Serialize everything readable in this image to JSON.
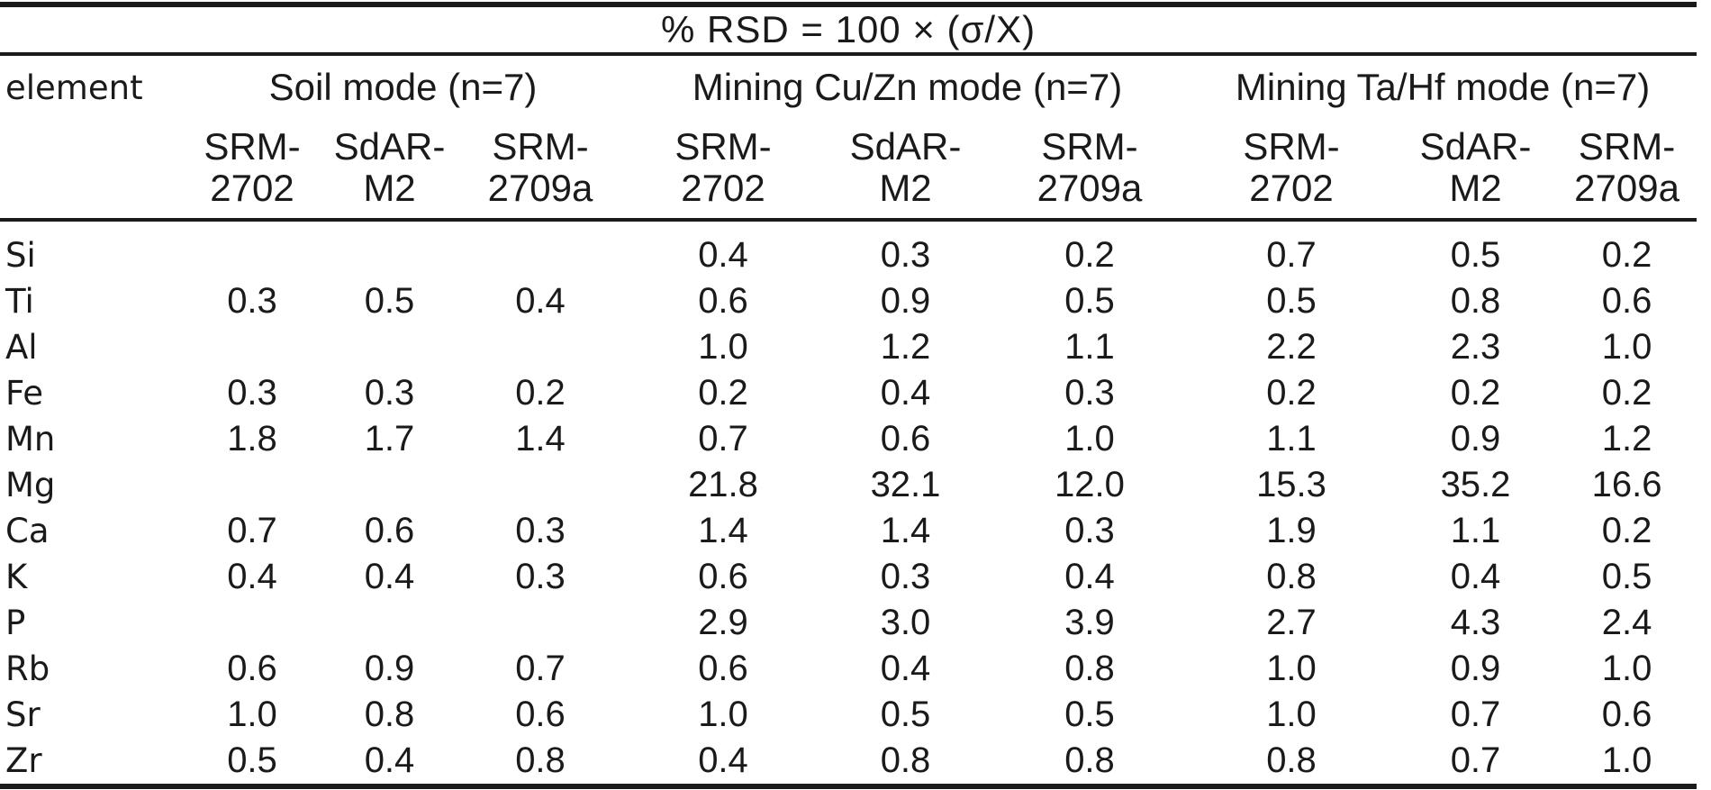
{
  "table": {
    "title": "% RSD = 100 × (σ/X)",
    "stub_header": "element",
    "groups": [
      {
        "label": "Soil mode (n=7)",
        "columns": [
          "SRM-\n2702",
          "SdAR-\nM2",
          "SRM-\n2709a"
        ]
      },
      {
        "label": "Mining Cu/Zn mode (n=7)",
        "columns": [
          "SRM-\n2702",
          "SdAR-\nM2",
          "SRM-\n2709a"
        ]
      },
      {
        "label": "Mining Ta/Hf mode (n=7)",
        "columns": [
          "SRM-\n2702",
          "SdAR-\nM2",
          "SRM-\n2709a"
        ]
      }
    ],
    "rows": [
      {
        "element": "Si",
        "values": [
          "",
          "",
          "",
          "0.4",
          "0.3",
          "0.2",
          "0.7",
          "0.5",
          "0.2"
        ]
      },
      {
        "element": "Ti",
        "values": [
          "0.3",
          "0.5",
          "0.4",
          "0.6",
          "0.9",
          "0.5",
          "0.5",
          "0.8",
          "0.6"
        ]
      },
      {
        "element": "Al",
        "values": [
          "",
          "",
          "",
          "1.0",
          "1.2",
          "1.1",
          "2.2",
          "2.3",
          "1.0"
        ]
      },
      {
        "element": "Fe",
        "values": [
          "0.3",
          "0.3",
          "0.2",
          "0.2",
          "0.4",
          "0.3",
          "0.2",
          "0.2",
          "0.2"
        ]
      },
      {
        "element": "Mn",
        "values": [
          "1.8",
          "1.7",
          "1.4",
          "0.7",
          "0.6",
          "1.0",
          "1.1",
          "0.9",
          "1.2"
        ]
      },
      {
        "element": "Mg",
        "values": [
          "",
          "",
          "",
          "21.8",
          "32.1",
          "12.0",
          "15.3",
          "35.2",
          "16.6"
        ]
      },
      {
        "element": "Ca",
        "values": [
          "0.7",
          "0.6",
          "0.3",
          "1.4",
          "1.4",
          "0.3",
          "1.9",
          "1.1",
          "0.2"
        ]
      },
      {
        "element": "K",
        "values": [
          "0.4",
          "0.4",
          "0.3",
          "0.6",
          "0.3",
          "0.4",
          "0.8",
          "0.4",
          "0.5"
        ]
      },
      {
        "element": "P",
        "values": [
          "",
          "",
          "",
          "2.9",
          "3.0",
          "3.9",
          "2.7",
          "4.3",
          "2.4"
        ]
      },
      {
        "element": "Rb",
        "values": [
          "0.6",
          "0.9",
          "0.7",
          "0.6",
          "0.4",
          "0.8",
          "1.0",
          "0.9",
          "1.0"
        ]
      },
      {
        "element": "Sr",
        "values": [
          "1.0",
          "0.8",
          "0.6",
          "1.0",
          "0.5",
          "0.5",
          "1.0",
          "0.7",
          "0.6"
        ]
      },
      {
        "element": "Zr",
        "values": [
          "0.5",
          "0.4",
          "0.8",
          "0.4",
          "0.8",
          "0.8",
          "0.8",
          "0.7",
          "1.0"
        ]
      }
    ]
  },
  "colors": {
    "text": "#1a1a1a",
    "rule": "#1a1a1a",
    "background": "#ffffff"
  }
}
